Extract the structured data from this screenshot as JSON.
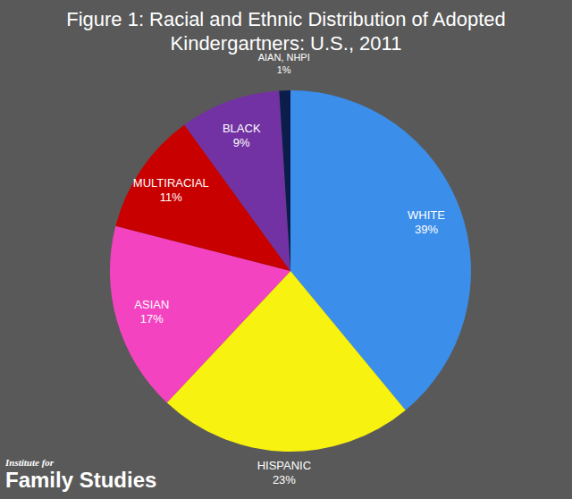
{
  "chart_data": {
    "type": "pie",
    "title": "Figure 1: Racial and Ethnic Distribution of Adopted Kindergartners: U.S., 2011",
    "categories": [
      "WHITE",
      "HISPANIC",
      "ASIAN",
      "MULTIRACIAL",
      "BLACK",
      "AIAN, NHPI"
    ],
    "values": [
      39,
      23,
      17,
      11,
      9,
      1
    ],
    "value_labels": [
      "39%",
      "23%",
      "17%",
      "11%",
      "9%",
      "1%"
    ],
    "colors": [
      "#3b8eea",
      "#f7f20f",
      "#f443c1",
      "#c80000",
      "#7232a3",
      "#0b1d4a"
    ],
    "data_labels": true
  },
  "source": [
    "Institute for",
    "Family Studies"
  ]
}
